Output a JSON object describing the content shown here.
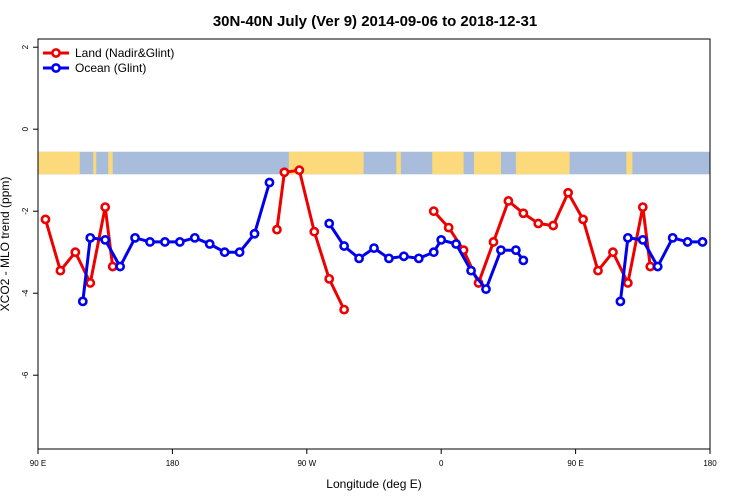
{
  "chart_data": {
    "type": "line",
    "title": "30N-40N July (Ver 9)   2014-09-06 to 2018-12-31",
    "xlabel": "Longitude (deg E)",
    "ylabel": "XCO2 - MLO trend (ppm)",
    "xlim": [
      90,
      540
    ],
    "ylim": [
      -7.8,
      2.2
    ],
    "xticks": [
      {
        "value": 90,
        "label": "90 E"
      },
      {
        "value": 180,
        "label": "180"
      },
      {
        "value": 270,
        "label": "90 W"
      },
      {
        "value": 360,
        "label": "0"
      },
      {
        "value": 450,
        "label": "90 E"
      },
      {
        "value": 540,
        "label": "180"
      }
    ],
    "yticks": [
      {
        "value": 2,
        "label": "2"
      },
      {
        "value": 0,
        "label": "0"
      },
      {
        "value": -2,
        "label": "-2"
      },
      {
        "value": -4,
        "label": "-4"
      },
      {
        "value": -6,
        "label": "-6"
      }
    ],
    "legend_position": "top-left",
    "map_band": {
      "ymin": -1.1,
      "ymax": -0.55,
      "ocean_color": "#a8bddb",
      "land_color": "#fcd97a"
    },
    "series": [
      {
        "name": "Land (Nadir&Glint)",
        "color": "#ee0000",
        "segments": [
          [
            [
              95,
              -2.2
            ],
            [
              105,
              -3.45
            ],
            [
              115,
              -3.0
            ],
            [
              125,
              -3.75
            ],
            [
              135,
              -1.9
            ],
            [
              140,
              -3.35
            ]
          ],
          [
            [
              250,
              -2.45
            ],
            [
              255,
              -1.05
            ],
            [
              265,
              -1.0
            ],
            [
              275,
              -2.5
            ],
            [
              285,
              -3.65
            ],
            [
              295,
              -4.4
            ]
          ],
          [
            [
              355,
              -2.0
            ],
            [
              365,
              -2.4
            ],
            [
              375,
              -2.95
            ],
            [
              385,
              -3.75
            ],
            [
              395,
              -2.75
            ],
            [
              405,
              -1.75
            ],
            [
              415,
              -2.05
            ],
            [
              425,
              -2.3
            ],
            [
              435,
              -2.35
            ],
            [
              445,
              -1.55
            ],
            [
              455,
              -2.2
            ],
            [
              465,
              -3.45
            ],
            [
              475,
              -3.0
            ],
            [
              485,
              -3.75
            ],
            [
              495,
              -1.9
            ],
            [
              500,
              -3.35
            ]
          ]
        ]
      },
      {
        "name": "Ocean (Glint)",
        "color": "#0000ee",
        "segments": [
          [
            [
              120,
              -4.2
            ],
            [
              125,
              -2.65
            ],
            [
              135,
              -2.7
            ],
            [
              145,
              -3.35
            ],
            [
              155,
              -2.65
            ],
            [
              165,
              -2.75
            ],
            [
              175,
              -2.75
            ],
            [
              185,
              -2.75
            ],
            [
              195,
              -2.65
            ],
            [
              205,
              -2.8
            ],
            [
              215,
              -3.0
            ],
            [
              225,
              -3.0
            ],
            [
              235,
              -2.55
            ],
            [
              245,
              -1.3
            ]
          ],
          [
            [
              285,
              -2.3
            ],
            [
              295,
              -2.85
            ],
            [
              305,
              -3.15
            ],
            [
              315,
              -2.9
            ],
            [
              325,
              -3.15
            ],
            [
              335,
              -3.1
            ],
            [
              345,
              -3.15
            ],
            [
              355,
              -3.0
            ],
            [
              360,
              -2.7
            ],
            [
              370,
              -2.8
            ],
            [
              380,
              -3.45
            ],
            [
              390,
              -3.9
            ],
            [
              400,
              -2.95
            ],
            [
              410,
              -2.95
            ],
            [
              415,
              -3.2
            ]
          ],
          [
            [
              480,
              -4.2
            ],
            [
              485,
              -2.65
            ],
            [
              495,
              -2.7
            ],
            [
              505,
              -3.35
            ],
            [
              515,
              -2.65
            ],
            [
              525,
              -2.75
            ],
            [
              535,
              -2.75
            ]
          ]
        ]
      }
    ]
  }
}
